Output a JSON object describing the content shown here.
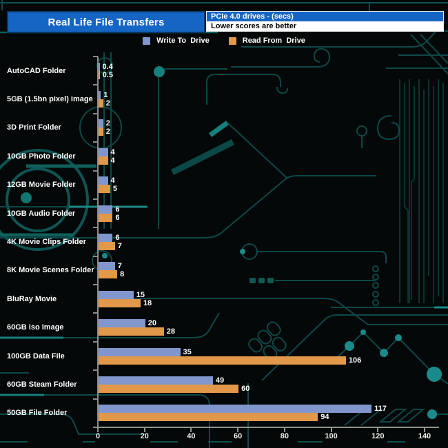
{
  "header": {
    "title": "Real Life File Transfers",
    "info_top": "PCIe 4.0 drives - (secs)",
    "info_bottom": "Lower scores are better"
  },
  "legend": {
    "items": [
      {
        "label": "Write To  Drive",
        "color": "#8096cc"
      },
      {
        "label": "Read From  Drive",
        "color": "#e2984a"
      }
    ]
  },
  "colors": {
    "background": "#050808",
    "title_bg": "#1565c4",
    "title_border": "#0a3668",
    "write_bar": "#8096cc",
    "read_bar": "#e2984a",
    "circuit_trace": "#0d4848",
    "circuit_bright": "#1b8a8a",
    "axis_vertical": "#8c8c8c",
    "axis_horizontal": "#8a9888",
    "text": "#ffffff"
  },
  "chart_data": {
    "type": "bar",
    "orientation": "horizontal",
    "title": "Real Life File Transfers",
    "subtitle": "PCIe 4.0 drives - (secs)",
    "note": "Lower scores are better",
    "categories": [
      "AutoCAD Folder",
      "5GB (1.5bn pixel) image",
      "3D Print Folder",
      "10GB Photo Folder",
      "12GB Movie Folder",
      "10GB Audio Folder",
      "4K Movie Clips Folder",
      "8K Movie Scenes Folder",
      "BluRay Movie",
      "60GB iso Image",
      "100GB Data File",
      "60GB Steam Folder",
      "50GB File Folder"
    ],
    "series": [
      {
        "name": "Write To  Drive",
        "color": "#8096cc",
        "values": [
          0.4,
          1,
          2,
          4,
          4,
          6,
          6,
          7,
          15,
          20,
          35,
          49,
          117
        ]
      },
      {
        "name": "Read From  Drive",
        "color": "#e2984a",
        "values": [
          0.5,
          2,
          2,
          4,
          5,
          6,
          7,
          8,
          18,
          28,
          106,
          60,
          94
        ]
      }
    ],
    "xlabel": "",
    "ylabel": "",
    "xlim": [
      0,
      140
    ],
    "xticks": [
      0,
      20,
      40,
      60,
      80,
      100,
      120,
      140
    ],
    "grid": false,
    "legend_position": "top",
    "value_labels_shown": true
  }
}
